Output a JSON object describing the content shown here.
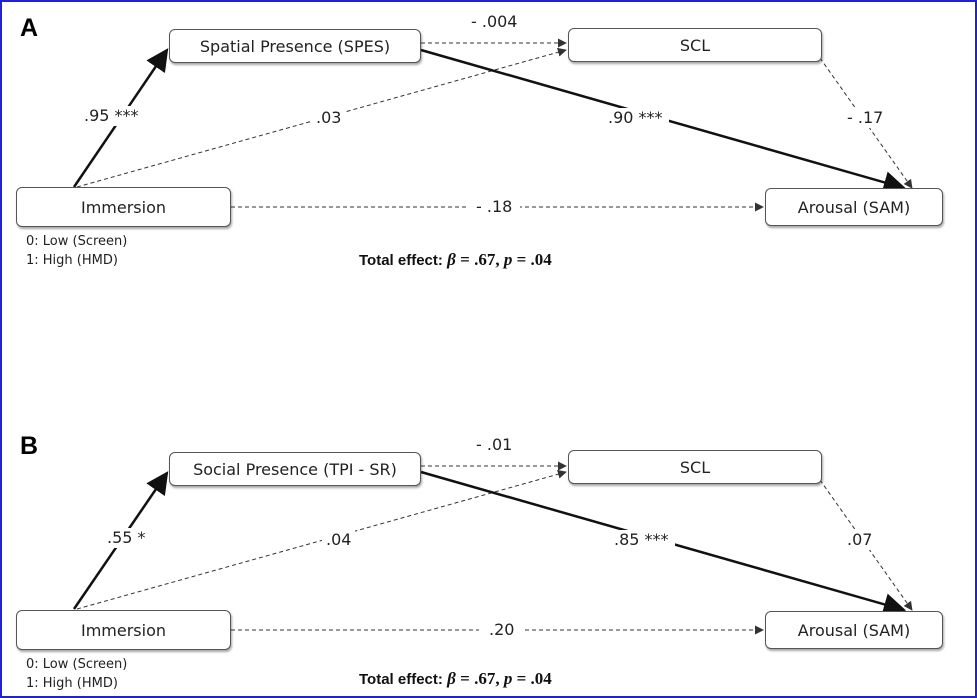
{
  "panels": [
    {
      "letter": "A",
      "mediator": "Spatial Presence (SPES)",
      "scl": "SCL",
      "predictor": "Immersion",
      "outcome": "Arousal (SAM)",
      "coding": [
        "0: Low (Screen)",
        "1: High (HMD)"
      ],
      "paths": {
        "immersion_to_mediator": ".95 ***",
        "mediator_to_scl": "- .004",
        "immersion_to_scl": ".03",
        "mediator_to_outcome": ".90 ***",
        "scl_to_outcome": "- .17",
        "immersion_to_outcome": "- .18"
      },
      "total_effect": {
        "label": "Total effect:",
        "beta": ".67",
        "p": ".04"
      }
    },
    {
      "letter": "B",
      "mediator": "Social Presence (TPI - SR)",
      "scl": "SCL",
      "predictor": "Immersion",
      "outcome": "Arousal (SAM)",
      "coding": [
        "0: Low (Screen)",
        "1: High (HMD)"
      ],
      "paths": {
        "immersion_to_mediator": ".55 *",
        "mediator_to_scl": "- .01",
        "immersion_to_scl": ".04",
        "mediator_to_outcome": ".85 ***",
        "scl_to_outcome": ".07",
        "immersion_to_outcome": ".20"
      },
      "total_effect": {
        "label": "Total effect:",
        "beta": ".67",
        "p": ".04"
      }
    }
  ],
  "colors": {
    "frame": "#2222cc",
    "solid_path": "#111111",
    "dashed_path": "#333333"
  }
}
